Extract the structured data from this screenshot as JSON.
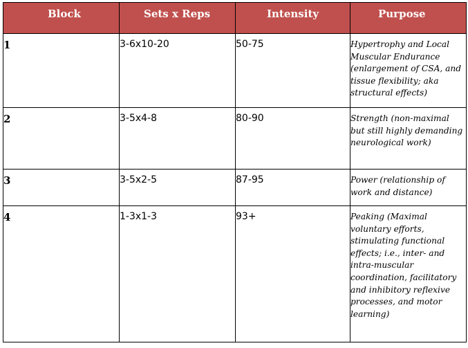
{
  "table": {
    "headers": [
      "Block",
      "Sets x Reps",
      "Intensity",
      "Purpose"
    ],
    "rows": [
      {
        "block": "1",
        "sets_reps": "3-6x10-20",
        "intensity": "50-75",
        "purpose": "Hypertrophy and Local Muscular Endurance (enlargement of CSA, and tissue flexibility; aka structural effects)"
      },
      {
        "block": "2",
        "sets_reps": "3-5x4-8",
        "intensity": "80-90",
        "purpose": "Strength (non-maximal but still highly demanding neurological work)"
      },
      {
        "block": "3",
        "sets_reps": "3-5x2-5",
        "intensity": "87-95",
        "purpose": "Power (relationship of work and distance)"
      },
      {
        "block": "4",
        "sets_reps": "1-3x1-3",
        "intensity": "93+",
        "purpose": "Peaking (Maximal voluntary efforts, stimulating functional effects; i.e., inter- and intra-muscular coordination, facilitatory and inhibitory reflexive processes, and motor learning)"
      }
    ],
    "colors": {
      "header_background": "#c0504d",
      "header_text": "#ffffff",
      "border": "#000000"
    }
  }
}
